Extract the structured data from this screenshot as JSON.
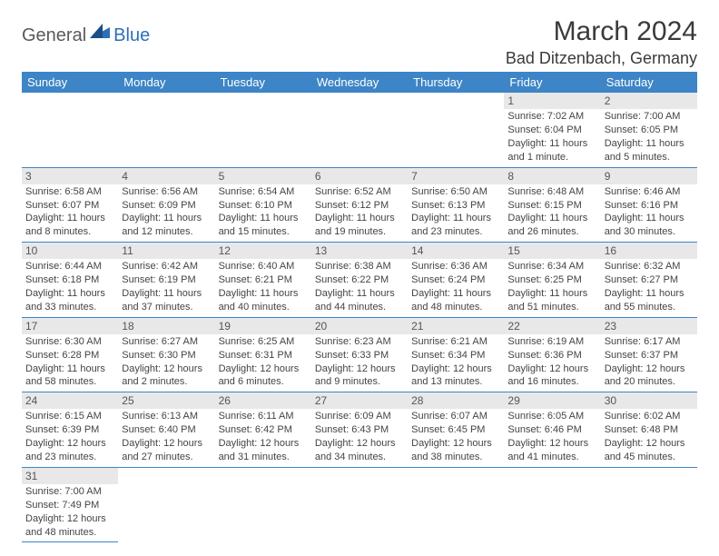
{
  "logo": {
    "general": "General",
    "blue": "Blue"
  },
  "title": "March 2024",
  "location": "Bad Ditzenbach, Germany",
  "colors": {
    "header_bg": "#3d85c6",
    "header_text": "#ffffff",
    "daynum_bg": "#e8e8e8",
    "rule": "#3d85c6",
    "logo_blue": "#2d6fb8",
    "logo_gray": "#5a5a5a",
    "text": "#444444"
  },
  "typography": {
    "title_fontsize": 30,
    "location_fontsize": 18,
    "weekday_fontsize": 13,
    "daynum_fontsize": 12,
    "body_fontsize": 11
  },
  "calendar": {
    "type": "table",
    "weekdays": [
      "Sunday",
      "Monday",
      "Tuesday",
      "Wednesday",
      "Thursday",
      "Friday",
      "Saturday"
    ],
    "weeks": [
      [
        {
          "empty": true
        },
        {
          "empty": true
        },
        {
          "empty": true
        },
        {
          "empty": true
        },
        {
          "empty": true
        },
        {
          "day": "1",
          "sunrise": "Sunrise: 7:02 AM",
          "sunset": "Sunset: 6:04 PM",
          "daylight1": "Daylight: 11 hours",
          "daylight2": "and 1 minute."
        },
        {
          "day": "2",
          "sunrise": "Sunrise: 7:00 AM",
          "sunset": "Sunset: 6:05 PM",
          "daylight1": "Daylight: 11 hours",
          "daylight2": "and 5 minutes."
        }
      ],
      [
        {
          "day": "3",
          "sunrise": "Sunrise: 6:58 AM",
          "sunset": "Sunset: 6:07 PM",
          "daylight1": "Daylight: 11 hours",
          "daylight2": "and 8 minutes."
        },
        {
          "day": "4",
          "sunrise": "Sunrise: 6:56 AM",
          "sunset": "Sunset: 6:09 PM",
          "daylight1": "Daylight: 11 hours",
          "daylight2": "and 12 minutes."
        },
        {
          "day": "5",
          "sunrise": "Sunrise: 6:54 AM",
          "sunset": "Sunset: 6:10 PM",
          "daylight1": "Daylight: 11 hours",
          "daylight2": "and 15 minutes."
        },
        {
          "day": "6",
          "sunrise": "Sunrise: 6:52 AM",
          "sunset": "Sunset: 6:12 PM",
          "daylight1": "Daylight: 11 hours",
          "daylight2": "and 19 minutes."
        },
        {
          "day": "7",
          "sunrise": "Sunrise: 6:50 AM",
          "sunset": "Sunset: 6:13 PM",
          "daylight1": "Daylight: 11 hours",
          "daylight2": "and 23 minutes."
        },
        {
          "day": "8",
          "sunrise": "Sunrise: 6:48 AM",
          "sunset": "Sunset: 6:15 PM",
          "daylight1": "Daylight: 11 hours",
          "daylight2": "and 26 minutes."
        },
        {
          "day": "9",
          "sunrise": "Sunrise: 6:46 AM",
          "sunset": "Sunset: 6:16 PM",
          "daylight1": "Daylight: 11 hours",
          "daylight2": "and 30 minutes."
        }
      ],
      [
        {
          "day": "10",
          "sunrise": "Sunrise: 6:44 AM",
          "sunset": "Sunset: 6:18 PM",
          "daylight1": "Daylight: 11 hours",
          "daylight2": "and 33 minutes."
        },
        {
          "day": "11",
          "sunrise": "Sunrise: 6:42 AM",
          "sunset": "Sunset: 6:19 PM",
          "daylight1": "Daylight: 11 hours",
          "daylight2": "and 37 minutes."
        },
        {
          "day": "12",
          "sunrise": "Sunrise: 6:40 AM",
          "sunset": "Sunset: 6:21 PM",
          "daylight1": "Daylight: 11 hours",
          "daylight2": "and 40 minutes."
        },
        {
          "day": "13",
          "sunrise": "Sunrise: 6:38 AM",
          "sunset": "Sunset: 6:22 PM",
          "daylight1": "Daylight: 11 hours",
          "daylight2": "and 44 minutes."
        },
        {
          "day": "14",
          "sunrise": "Sunrise: 6:36 AM",
          "sunset": "Sunset: 6:24 PM",
          "daylight1": "Daylight: 11 hours",
          "daylight2": "and 48 minutes."
        },
        {
          "day": "15",
          "sunrise": "Sunrise: 6:34 AM",
          "sunset": "Sunset: 6:25 PM",
          "daylight1": "Daylight: 11 hours",
          "daylight2": "and 51 minutes."
        },
        {
          "day": "16",
          "sunrise": "Sunrise: 6:32 AM",
          "sunset": "Sunset: 6:27 PM",
          "daylight1": "Daylight: 11 hours",
          "daylight2": "and 55 minutes."
        }
      ],
      [
        {
          "day": "17",
          "sunrise": "Sunrise: 6:30 AM",
          "sunset": "Sunset: 6:28 PM",
          "daylight1": "Daylight: 11 hours",
          "daylight2": "and 58 minutes."
        },
        {
          "day": "18",
          "sunrise": "Sunrise: 6:27 AM",
          "sunset": "Sunset: 6:30 PM",
          "daylight1": "Daylight: 12 hours",
          "daylight2": "and 2 minutes."
        },
        {
          "day": "19",
          "sunrise": "Sunrise: 6:25 AM",
          "sunset": "Sunset: 6:31 PM",
          "daylight1": "Daylight: 12 hours",
          "daylight2": "and 6 minutes."
        },
        {
          "day": "20",
          "sunrise": "Sunrise: 6:23 AM",
          "sunset": "Sunset: 6:33 PM",
          "daylight1": "Daylight: 12 hours",
          "daylight2": "and 9 minutes."
        },
        {
          "day": "21",
          "sunrise": "Sunrise: 6:21 AM",
          "sunset": "Sunset: 6:34 PM",
          "daylight1": "Daylight: 12 hours",
          "daylight2": "and 13 minutes."
        },
        {
          "day": "22",
          "sunrise": "Sunrise: 6:19 AM",
          "sunset": "Sunset: 6:36 PM",
          "daylight1": "Daylight: 12 hours",
          "daylight2": "and 16 minutes."
        },
        {
          "day": "23",
          "sunrise": "Sunrise: 6:17 AM",
          "sunset": "Sunset: 6:37 PM",
          "daylight1": "Daylight: 12 hours",
          "daylight2": "and 20 minutes."
        }
      ],
      [
        {
          "day": "24",
          "sunrise": "Sunrise: 6:15 AM",
          "sunset": "Sunset: 6:39 PM",
          "daylight1": "Daylight: 12 hours",
          "daylight2": "and 23 minutes."
        },
        {
          "day": "25",
          "sunrise": "Sunrise: 6:13 AM",
          "sunset": "Sunset: 6:40 PM",
          "daylight1": "Daylight: 12 hours",
          "daylight2": "and 27 minutes."
        },
        {
          "day": "26",
          "sunrise": "Sunrise: 6:11 AM",
          "sunset": "Sunset: 6:42 PM",
          "daylight1": "Daylight: 12 hours",
          "daylight2": "and 31 minutes."
        },
        {
          "day": "27",
          "sunrise": "Sunrise: 6:09 AM",
          "sunset": "Sunset: 6:43 PM",
          "daylight1": "Daylight: 12 hours",
          "daylight2": "and 34 minutes."
        },
        {
          "day": "28",
          "sunrise": "Sunrise: 6:07 AM",
          "sunset": "Sunset: 6:45 PM",
          "daylight1": "Daylight: 12 hours",
          "daylight2": "and 38 minutes."
        },
        {
          "day": "29",
          "sunrise": "Sunrise: 6:05 AM",
          "sunset": "Sunset: 6:46 PM",
          "daylight1": "Daylight: 12 hours",
          "daylight2": "and 41 minutes."
        },
        {
          "day": "30",
          "sunrise": "Sunrise: 6:02 AM",
          "sunset": "Sunset: 6:48 PM",
          "daylight1": "Daylight: 12 hours",
          "daylight2": "and 45 minutes."
        }
      ],
      [
        {
          "day": "31",
          "sunrise": "Sunrise: 7:00 AM",
          "sunset": "Sunset: 7:49 PM",
          "daylight1": "Daylight: 12 hours",
          "daylight2": "and 48 minutes."
        },
        {
          "empty": true
        },
        {
          "empty": true
        },
        {
          "empty": true
        },
        {
          "empty": true
        },
        {
          "empty": true
        },
        {
          "empty": true
        }
      ]
    ]
  }
}
